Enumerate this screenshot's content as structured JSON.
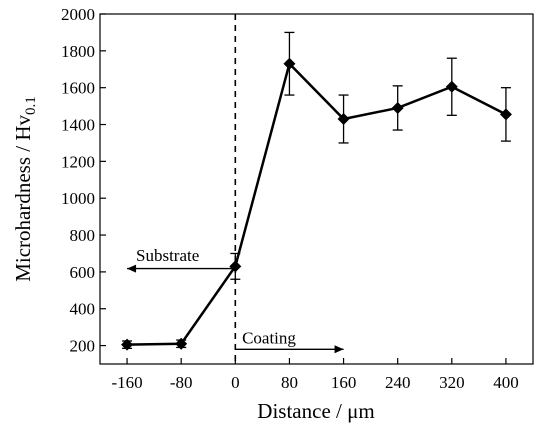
{
  "chart_data": {
    "type": "line",
    "xlabel": "Distance / μm",
    "ylabel": "Microhardness / Hv",
    "ylabel_sub": "0.1",
    "x_ticks": [
      -160,
      -80,
      0,
      80,
      160,
      240,
      320,
      400
    ],
    "y_ticks": [
      200,
      400,
      600,
      800,
      1000,
      1200,
      1400,
      1600,
      1800,
      2000
    ],
    "xlim": [
      -200,
      440
    ],
    "ylim": [
      100,
      2000
    ],
    "grid": false,
    "marker": "diamond",
    "x": [
      -160,
      -80,
      0,
      80,
      160,
      240,
      320,
      400
    ],
    "y": [
      205,
      210,
      630,
      1730,
      1430,
      1490,
      1605,
      1455
    ],
    "error": [
      20,
      20,
      70,
      170,
      130,
      120,
      155,
      145
    ],
    "boundary_x": 0,
    "annotations": [
      {
        "text": "Substrate",
        "x": -100,
        "y": 660,
        "arrow_from": 0,
        "arrow_to": -160,
        "arrow_y": 618
      },
      {
        "text": "Coating",
        "x": 10,
        "y": 210,
        "arrow_from": 0,
        "arrow_to": 160,
        "arrow_y": 180
      }
    ]
  }
}
